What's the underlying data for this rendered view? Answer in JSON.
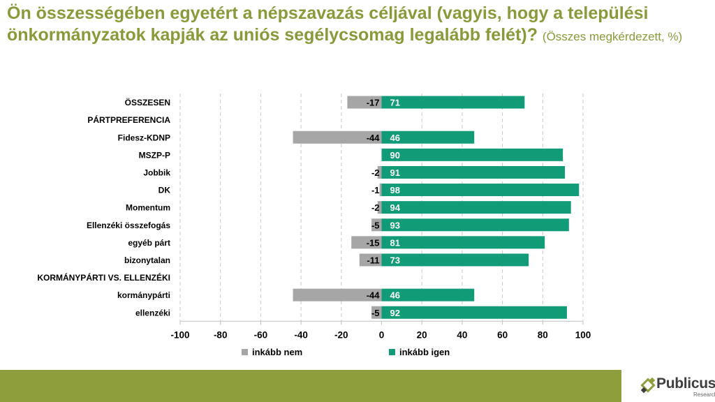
{
  "title": "Ön összességében egyetért a népszavazás céljával (vagyis, hogy a települési önkormányzatok kapják az uniós segélycsomag legalább felét)?",
  "subtitle": "(Összes megkérdezett, %)",
  "chart_data": {
    "type": "bar",
    "orientation": "horizontal",
    "stacked": "diverging",
    "categories": [
      "ÖSSZESEN",
      "PÁRTPREFERENCIA",
      "Fidesz-KDNP",
      "MSZP-P",
      "Jobbik",
      "DK",
      "Momentum",
      "Ellenzéki összefogás",
      "egyéb párt",
      "bizonytalan",
      "KORMÁNYPÁRTI VS. ELLENZÉKI",
      "kormánypárti",
      "ellenzéki"
    ],
    "series": [
      {
        "name": "inkább nem",
        "color": "#a6a6a6",
        "values": [
          -17,
          null,
          -44,
          null,
          -2,
          -1,
          -2,
          -5,
          -15,
          -11,
          null,
          -44,
          -5
        ],
        "labels": [
          "-17",
          "",
          "-44",
          "",
          "-2",
          "-1",
          "-2",
          "-5",
          "-15",
          "-11",
          "",
          "-44",
          "-5"
        ]
      },
      {
        "name": "inkább igen",
        "color": "#119b76",
        "values": [
          71,
          null,
          46,
          90,
          91,
          98,
          94,
          93,
          81,
          73,
          null,
          46,
          92
        ],
        "labels": [
          "71",
          "",
          "46",
          "90",
          "91",
          "98",
          "94",
          "93",
          "81",
          "73",
          "",
          "46",
          "92"
        ]
      }
    ],
    "xlim": [
      -100,
      100
    ],
    "xticks": [
      -100,
      -80,
      -60,
      -40,
      -20,
      0,
      20,
      40,
      60,
      80,
      100
    ],
    "xtick_labels": [
      "-100",
      "-80",
      "-60",
      "-40",
      "-20",
      "0",
      "20",
      "40",
      "60",
      "80",
      "100"
    ],
    "grid": "vertical dashed",
    "legend": "bottom"
  },
  "logo": {
    "name": "Publicus",
    "sub": "Research"
  }
}
